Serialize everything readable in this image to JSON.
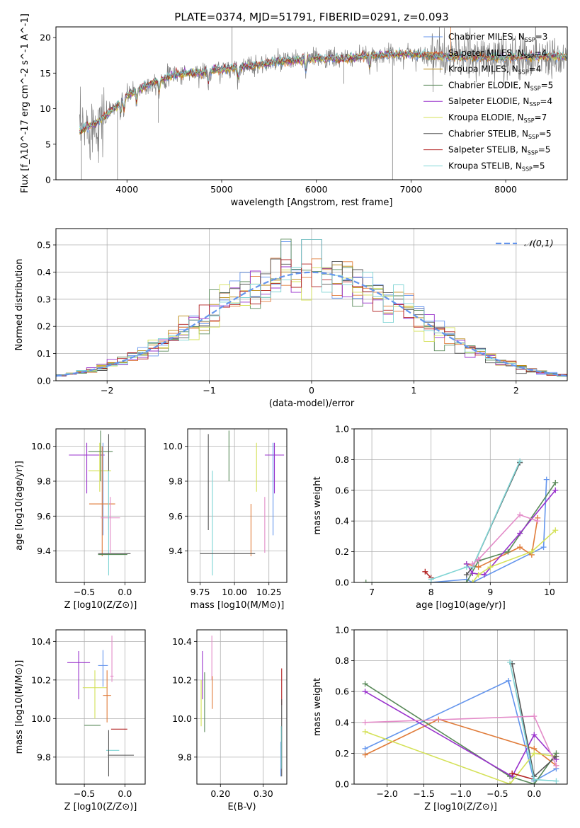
{
  "figure": {
    "title": "PLATE=0374, MJD=51791, FIBERID=0291, z=0.093"
  },
  "chart_data": [
    {
      "id": "spectrum",
      "type": "line",
      "xlabel": "wavelength [Angstrom, rest frame]",
      "ylabel": "Flux [f_λ10^-17 erg cm^-2 s^-1 A^-1]",
      "xlim": [
        3250,
        8650
      ],
      "ylim": [
        0,
        21.5
      ],
      "xticks": [
        4000,
        5000,
        6000,
        7000,
        8000
      ],
      "yticks": [
        0,
        5,
        10,
        15,
        20
      ],
      "legend_position": "top-right",
      "legend": [
        {
          "name": "Chabrier MILES",
          "nssp": "3",
          "color": "#6495ed"
        },
        {
          "name": "Salpeter MILES",
          "nssp": "4",
          "color": "#e07b39"
        },
        {
          "name": "Kroupa MILES",
          "nssp": "4",
          "color": "#b8860b"
        },
        {
          "name": "Chabrier ELODIE",
          "nssp": "5",
          "color": "#5a8a5a"
        },
        {
          "name": "Salpeter ELODIE",
          "nssp": "4",
          "color": "#9932cc"
        },
        {
          "name": "Kroupa ELODIE",
          "nssp": "7",
          "color": "#d4e157"
        },
        {
          "name": "Chabrier STELIB",
          "nssp": "5",
          "color": "#555555"
        },
        {
          "name": "Salpeter STELIB",
          "nssp": "5",
          "color": "#b22222"
        },
        {
          "name": "Kroupa STELIB",
          "nssp": "5",
          "color": "#7fd4d4"
        }
      ],
      "data_series": "observed",
      "observed_color": "#808080",
      "continuum": [
        [
          3500,
          6.8
        ],
        [
          3700,
          8.2
        ],
        [
          3900,
          10.5
        ],
        [
          4000,
          11.8
        ],
        [
          4100,
          12.6
        ],
        [
          4300,
          13.8
        ],
        [
          4500,
          14.8
        ],
        [
          4800,
          15.1
        ],
        [
          5000,
          15.5
        ],
        [
          5300,
          16.0
        ],
        [
          5600,
          16.6
        ],
        [
          6000,
          17.1
        ],
        [
          6300,
          17.0
        ],
        [
          6600,
          17.5
        ],
        [
          7000,
          17.7
        ],
        [
          7400,
          17.3
        ],
        [
          7800,
          17.2
        ],
        [
          8300,
          17.3
        ],
        [
          8600,
          17.4
        ]
      ]
    },
    {
      "id": "residual-histogram",
      "type": "histogram",
      "xlabel": "(data-model)/error",
      "ylabel": "Normed distribution",
      "xlim": [
        -2.5,
        2.5
      ],
      "ylim": [
        0,
        0.56
      ],
      "xticks": [
        -2,
        -1,
        0,
        1,
        2
      ],
      "yticks": [
        0.0,
        0.1,
        0.2,
        0.3,
        0.4,
        0.5
      ],
      "legend_position": "top-right",
      "normal_label": "𝒩(0,1)",
      "normal_color": "#6495ed",
      "bin_width": 0.1
    },
    {
      "id": "age-vs-metallicity",
      "type": "scatter",
      "xlabel": "Z [log10(Z/Z⊙)]",
      "ylabel": "age [log10(age/yr)]",
      "xlim": [
        -0.85,
        0.25
      ],
      "ylim": [
        9.22,
        10.1
      ],
      "xticks": [
        -0.5,
        0.0
      ],
      "yticks": [
        9.4,
        9.6,
        9.8,
        10.0
      ],
      "points": [
        {
          "color": "#9932cc",
          "x": -0.47,
          "xerr": [
            0.22,
            0.22
          ],
          "y": 9.95,
          "yerr": [
            0.22,
            0.07
          ]
        },
        {
          "color": "#d4e157",
          "x": -0.31,
          "xerr": [
            0.14,
            0.14
          ],
          "y": 9.86,
          "yerr": [
            0.12,
            0.16
          ]
        },
        {
          "color": "#5a8a5a",
          "x": -0.3,
          "xerr": [
            0.15,
            0.15
          ],
          "y": 9.97,
          "yerr": [
            0.17,
            0.12
          ]
        },
        {
          "color": "#6495ed",
          "x": -0.27,
          "xerr": [
            0.0,
            0.0
          ],
          "y": 9.86,
          "yerr": [
            0.37,
            0.16
          ]
        },
        {
          "color": "#e07b39",
          "x": -0.28,
          "xerr": [
            0.16,
            0.16
          ],
          "y": 9.67,
          "yerr": [
            0.3,
            0.33
          ]
        },
        {
          "color": "#555555",
          "x": -0.2,
          "xerr": [
            0.0,
            0.0
          ],
          "y": 10.07,
          "yerr": [
            0.55,
            0.0
          ]
        },
        {
          "color": "#e38bc8",
          "x": -0.18,
          "xerr": [
            0.12,
            0.12
          ],
          "y": 9.59,
          "yerr": [
            0.2,
            0.12
          ]
        },
        {
          "color": "#7fd4d4",
          "x": -0.2,
          "xerr": [
            0.0,
            0.0
          ],
          "y": 9.86,
          "yerr": [
            0.6,
            0.0
          ]
        },
        {
          "color": "#555555",
          "x": -0.13,
          "xerr": [
            0.2,
            0.2
          ],
          "y": 9.385,
          "yerr": [
            0.0,
            0.0
          ]
        },
        {
          "color": "#5a8a5a",
          "x": -0.15,
          "xerr": [
            0.18,
            0.18
          ],
          "y": 9.38,
          "yerr": [
            0.0,
            0.0
          ]
        }
      ]
    },
    {
      "id": "age-vs-mass",
      "type": "scatter",
      "xlabel": "mass [log10(M/M⊙)]",
      "ylabel": "",
      "xlim": [
        9.66,
        10.38
      ],
      "ylim": [
        9.22,
        10.1
      ],
      "xticks": [
        9.75,
        10.0,
        10.25
      ],
      "yticks": [
        9.4,
        9.6,
        9.8,
        10.0
      ],
      "points": [
        {
          "color": "#9932cc",
          "x": 10.29,
          "xerr": [
            0.07,
            0.07
          ],
          "y": 9.95,
          "yerr": [
            0.22,
            0.07
          ]
        },
        {
          "color": "#d4e157",
          "x": 10.16,
          "xerr": [
            0.0,
            0.0
          ],
          "y": 9.86,
          "yerr": [
            0.12,
            0.16
          ]
        },
        {
          "color": "#5a8a5a",
          "x": 9.96,
          "xerr": [
            0.0,
            0.0
          ],
          "y": 9.97,
          "yerr": [
            0.17,
            0.12
          ]
        },
        {
          "color": "#6495ed",
          "x": 10.28,
          "xerr": [
            0.0,
            0.0
          ],
          "y": 9.86,
          "yerr": [
            0.37,
            0.16
          ]
        },
        {
          "color": "#e07b39",
          "x": 10.12,
          "xerr": [
            0.0,
            0.0
          ],
          "y": 9.67,
          "yerr": [
            0.3,
            0.0
          ]
        },
        {
          "color": "#555555",
          "x": 9.81,
          "xerr": [
            0.0,
            0.0
          ],
          "y": 10.07,
          "yerr": [
            0.55,
            0.0
          ]
        },
        {
          "color": "#e38bc8",
          "x": 10.22,
          "xerr": [
            0.0,
            0.0
          ],
          "y": 9.59,
          "yerr": [
            0.2,
            0.12
          ]
        },
        {
          "color": "#7fd4d4",
          "x": 9.84,
          "xerr": [
            0.0,
            0.0
          ],
          "y": 9.86,
          "yerr": [
            0.6,
            0.0
          ]
        },
        {
          "color": "#b22222",
          "x": 9.95,
          "xerr": [
            0.0,
            0.0
          ],
          "y": 9.79,
          "yerr": [
            0.0,
            0.0
          ]
        },
        {
          "color": "#555555",
          "x": 9.95,
          "xerr": [
            0.2,
            0.2
          ],
          "y": 9.385,
          "yerr": [
            0.0,
            0.0
          ]
        }
      ]
    },
    {
      "id": "weight-vs-age",
      "type": "line",
      "xlabel": "age [log10(age/yr)]",
      "ylabel": "mass weight",
      "xlim": [
        6.7,
        10.3
      ],
      "ylim": [
        0,
        1.0
      ],
      "xticks": [
        7,
        8,
        9,
        10
      ],
      "yticks": [
        0.0,
        0.2,
        0.4,
        0.6,
        0.8,
        1.0
      ],
      "series": [
        {
          "color": "#6495ed",
          "x": [
            8.0,
            8.6,
            8.7,
            9.9,
            9.95
          ],
          "y": [
            0.0,
            0.02,
            0.0,
            0.23,
            0.67
          ]
        },
        {
          "color": "#e07b39",
          "x": [
            8.6,
            8.8,
            9.5,
            9.7,
            9.8
          ],
          "y": [
            0.12,
            0.1,
            0.23,
            0.18,
            0.42
          ]
        },
        {
          "color": "#5a8a5a",
          "x": [
            6.9,
            8.6,
            8.8,
            9.3,
            10.1
          ],
          "y": [
            0.0,
            0.0,
            0.14,
            0.2,
            0.65
          ]
        },
        {
          "color": "#9932cc",
          "x": [
            8.6,
            8.7,
            8.9,
            9.5,
            10.1
          ],
          "y": [
            0.12,
            0.06,
            0.05,
            0.32,
            0.6
          ]
        },
        {
          "color": "#d4e157",
          "x": [
            8.7,
            8.8,
            9.0,
            9.7,
            10.1
          ],
          "y": [
            0.0,
            0.05,
            0.1,
            0.2,
            0.34
          ]
        },
        {
          "color": "#555555",
          "x": [
            8.6,
            8.7,
            9.5
          ],
          "y": [
            0.05,
            0.1,
            0.78
          ]
        },
        {
          "color": "#b22222",
          "x": [
            7.9,
            8.0
          ],
          "y": [
            0.07,
            0.03
          ]
        },
        {
          "color": "#7fd4d4",
          "x": [
            8.0,
            8.6,
            8.7,
            9.5
          ],
          "y": [
            0.02,
            0.1,
            0.1,
            0.79
          ]
        },
        {
          "color": "#e38bc8",
          "x": [
            8.7,
            8.8,
            9.5,
            9.8
          ],
          "y": [
            0.12,
            0.15,
            0.44,
            0.4
          ]
        }
      ]
    },
    {
      "id": "mass-vs-metallicity",
      "type": "scatter",
      "xlabel": "Z [log10(Z/Z⊙)]",
      "ylabel": "mass [log10(M/M⊙)]",
      "xlim": [
        -0.85,
        0.25
      ],
      "ylim": [
        9.66,
        10.46
      ],
      "xticks": [
        -0.5,
        0.0
      ],
      "yticks": [
        9.8,
        10.0,
        10.2,
        10.4
      ],
      "points": [
        {
          "color": "#9932cc",
          "x": -0.57,
          "xerr": [
            0.14,
            0.14
          ],
          "y": 10.29,
          "yerr": [
            0.19,
            0.06
          ]
        },
        {
          "color": "#d4e157",
          "x": -0.37,
          "xerr": [
            0.15,
            0.15
          ],
          "y": 10.16,
          "yerr": [
            0.16,
            0.09
          ]
        },
        {
          "color": "#5a8a5a",
          "x": -0.4,
          "xerr": [
            0.1,
            0.1
          ],
          "y": 9.965,
          "yerr": [
            0.0,
            0.0
          ]
        },
        {
          "color": "#6495ed",
          "x": -0.27,
          "xerr": [
            0.06,
            0.06
          ],
          "y": 10.275,
          "yerr": [
            0.11,
            0.08
          ]
        },
        {
          "color": "#e07b39",
          "x": -0.22,
          "xerr": [
            0.05,
            0.05
          ],
          "y": 10.12,
          "yerr": [
            0.14,
            0.13
          ]
        },
        {
          "color": "#e38bc8",
          "x": -0.16,
          "xerr": [
            0.02,
            0.02
          ],
          "y": 10.22,
          "yerr": [
            0.03,
            0.21
          ]
        },
        {
          "color": "#7fd4d4",
          "x": -0.15,
          "xerr": [
            0.08,
            0.08
          ],
          "y": 9.835,
          "yerr": [
            0.0,
            0.0
          ]
        },
        {
          "color": "#b22222",
          "x": -0.07,
          "xerr": [
            0.1,
            0.1
          ],
          "y": 9.945,
          "yerr": [
            0.0,
            0.0
          ]
        },
        {
          "color": "#555555",
          "x": -0.05,
          "xerr": [
            0.16,
            0.16
          ],
          "y": 9.81,
          "yerr": [
            0.0,
            0.0
          ]
        },
        {
          "color": "#555555",
          "x": -0.2,
          "xerr": [
            0.0,
            0.0
          ],
          "y": 9.8,
          "yerr": [
            0.1,
            0.14
          ]
        }
      ]
    },
    {
      "id": "mass-vs-extinction",
      "type": "scatter",
      "xlabel": "E(B-V)",
      "ylabel": "",
      "xlim": [
        0.145,
        0.355
      ],
      "ylim": [
        9.66,
        10.46
      ],
      "xticks": [
        0.2,
        0.3
      ],
      "yticks": [
        9.8,
        10.0,
        10.2,
        10.4
      ],
      "points": [
        {
          "color": "#9932cc",
          "x": 0.158,
          "xerr": [
            0.0,
            0.0
          ],
          "y": 10.29,
          "yerr": [
            0.19,
            0.06
          ]
        },
        {
          "color": "#d4e157",
          "x": 0.155,
          "xerr": [
            0.0,
            0.0
          ],
          "y": 10.1,
          "yerr": [
            0.14,
            0.1
          ]
        },
        {
          "color": "#5a8a5a",
          "x": 0.163,
          "xerr": [
            0.0,
            0.0
          ],
          "y": 10.1,
          "yerr": [
            0.17,
            0.14
          ]
        },
        {
          "color": "#e38bc8",
          "x": 0.18,
          "xerr": [
            0.0,
            0.0
          ],
          "y": 10.3,
          "yerr": [
            0.1,
            0.13
          ]
        },
        {
          "color": "#e07b39",
          "x": 0.181,
          "xerr": [
            0.0,
            0.0
          ],
          "y": 10.12,
          "yerr": [
            0.07,
            0.1
          ]
        },
        {
          "color": "#b22222",
          "x": 0.343,
          "xerr": [
            0.0,
            0.0
          ],
          "y": 10.16,
          "yerr": [
            0.09,
            0.1
          ]
        },
        {
          "color": "#555555",
          "x": 0.343,
          "xerr": [
            0.0,
            0.0
          ],
          "y": 9.95,
          "yerr": [
            0.25,
            0.15
          ]
        },
        {
          "color": "#6495ed",
          "x": 0.341,
          "xerr": [
            0.0,
            0.0
          ],
          "y": 9.78,
          "yerr": [
            0.08,
            0.1
          ]
        },
        {
          "color": "#7fd4d4",
          "x": 0.342,
          "xerr": [
            0.0,
            0.0
          ],
          "y": 9.84,
          "yerr": [
            0.1,
            0.12
          ]
        }
      ]
    },
    {
      "id": "weight-vs-metallicity",
      "type": "line",
      "xlabel": "Z [log10(Z/Z⊙)]",
      "ylabel": "mass weight",
      "xlim": [
        -2.45,
        0.45
      ],
      "ylim": [
        0,
        1.0
      ],
      "xticks": [
        -2.0,
        -1.5,
        -1.0,
        -0.5,
        0.0
      ],
      "yticks": [
        0.0,
        0.2,
        0.4,
        0.6,
        0.8,
        1.0
      ],
      "series": [
        {
          "color": "#6495ed",
          "x": [
            -2.3,
            -0.35,
            0.0,
            0.3
          ],
          "y": [
            0.23,
            0.67,
            0.02,
            0.1
          ]
        },
        {
          "color": "#e07b39",
          "x": [
            -2.3,
            -1.3,
            0.0,
            0.3
          ],
          "y": [
            0.19,
            0.42,
            0.23,
            0.12
          ]
        },
        {
          "color": "#5a8a5a",
          "x": [
            -2.3,
            -0.33,
            0.0,
            0.3
          ],
          "y": [
            0.65,
            0.05,
            0.0,
            0.2
          ]
        },
        {
          "color": "#9932cc",
          "x": [
            -2.3,
            -0.3,
            0.0,
            0.3
          ],
          "y": [
            0.6,
            0.05,
            0.32,
            0.16
          ]
        },
        {
          "color": "#d4e157",
          "x": [
            -2.3,
            -0.33,
            0.0,
            0.3
          ],
          "y": [
            0.34,
            0.0,
            0.2,
            0.18
          ]
        },
        {
          "color": "#555555",
          "x": [
            -0.3,
            0.0,
            0.3
          ],
          "y": [
            0.78,
            0.05,
            0.18
          ]
        },
        {
          "color": "#b22222",
          "x": [
            -0.3,
            0.0
          ],
          "y": [
            0.07,
            0.03
          ]
        },
        {
          "color": "#7fd4d4",
          "x": [
            -0.33,
            0.0,
            0.3
          ],
          "y": [
            0.79,
            0.03,
            0.02
          ]
        },
        {
          "color": "#e38bc8",
          "x": [
            -2.3,
            0.0,
            0.3
          ],
          "y": [
            0.4,
            0.44,
            0.12
          ]
        }
      ]
    }
  ]
}
